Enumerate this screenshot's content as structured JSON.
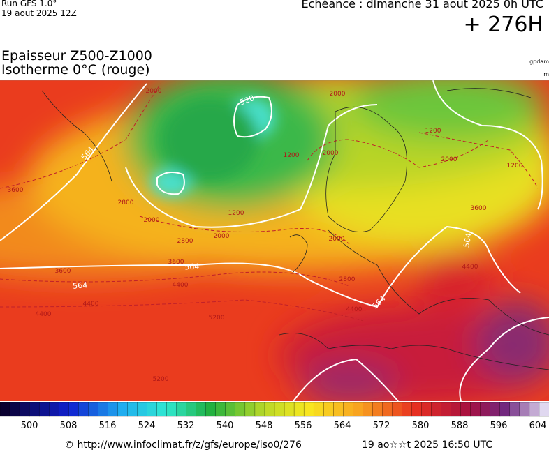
{
  "header": {
    "run": "Run GFS 1.0°",
    "run_date": "19 aout 2025 12Z",
    "echeance": "Echéance : dimanche 31 aout 2025 0h UTC",
    "horizon": "+ 276H"
  },
  "title": {
    "line1": "Epaisseur Z500-Z1000",
    "line2": "Isotherme 0°C (rouge)"
  },
  "units": {
    "thickness": "gpdam",
    "isotherm": "m"
  },
  "map_labels": {
    "thickness": [
      "528",
      "564",
      "564",
      "564",
      "564",
      "564"
    ],
    "isotherm": [
      "2000",
      "2000",
      "2000",
      "1200",
      "1200",
      "1200",
      "1200",
      "2000",
      "2000",
      "2000",
      "2000",
      "3600",
      "2800",
      "2800",
      "2800",
      "3600",
      "3600",
      "3600",
      "4400",
      "4400",
      "4400",
      "4400",
      "4400",
      "5200",
      "5200"
    ]
  },
  "colorbar": {
    "labels": [
      500,
      508,
      516,
      524,
      532,
      540,
      548,
      556,
      564,
      572,
      580,
      588,
      596,
      604
    ]
  },
  "footer": {
    "source": "© http://www.infoclimat.fr/z/gfs/europe/iso0/276",
    "timestamp": "19 ao☆☆t 2025 16:50 UTC"
  }
}
